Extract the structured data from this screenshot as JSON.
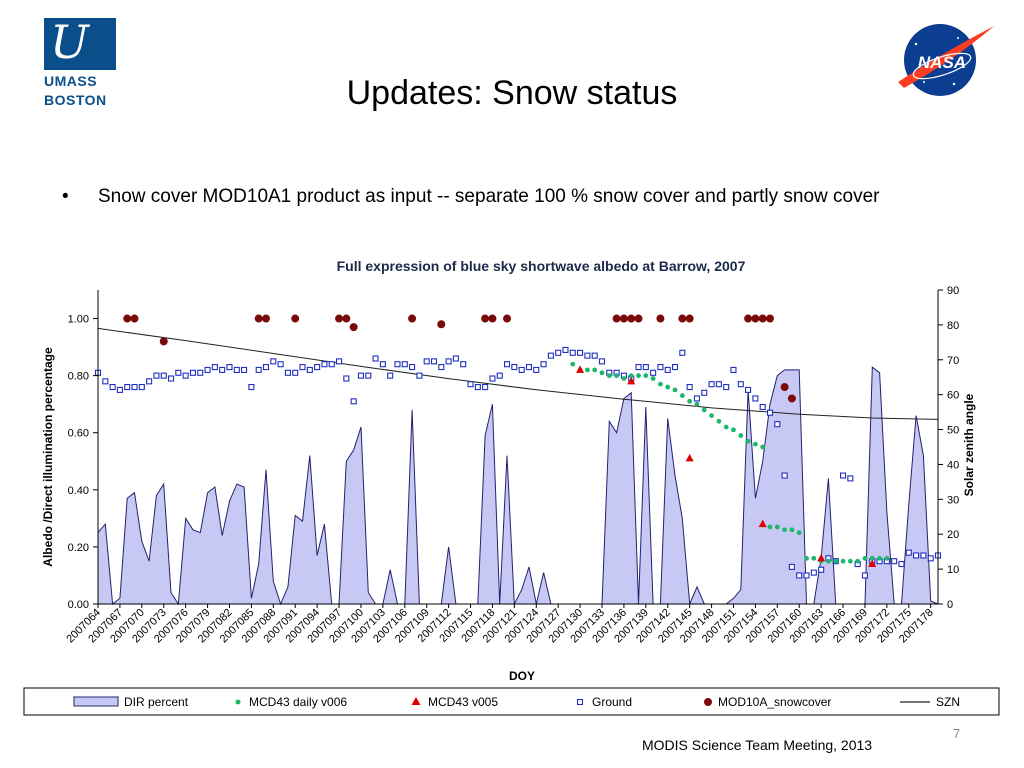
{
  "slide": {
    "title": "Updates: Snow status",
    "bullet": "Snow cover  MOD10A1 product as input  -- separate 100 % snow cover and partly snow cover",
    "footer": "MODIS Science Team Meeting, 2013",
    "page_number": "7",
    "logo_left": {
      "letter": "U",
      "line1": "UMASS",
      "line2": "BOSTON"
    },
    "logo_right": {
      "text": "NASA"
    }
  },
  "chart_data": {
    "type": "area",
    "title": "Full expression of blue sky shortwave albedo at Barrow, 2007",
    "xlabel": "DOY",
    "ylabel": "Albedo /Direct illumination percentage",
    "y2label": "Solar zenith angle",
    "xlim": [
      64,
      179
    ],
    "ylim": [
      0,
      1.1
    ],
    "y2lim": [
      0,
      90
    ],
    "x_tick_labels": [
      "2007064",
      "2007067",
      "2007070",
      "2007073",
      "2007076",
      "2007079",
      "2007082",
      "2007085",
      "2007088",
      "2007091",
      "2007094",
      "2007097",
      "2007100",
      "2007103",
      "2007106",
      "2007109",
      "2007112",
      "2007115",
      "2007118",
      "2007121",
      "2007124",
      "2007127",
      "2007130",
      "2007133",
      "2007136",
      "2007139",
      "2007142",
      "2007145",
      "2007148",
      "2007151",
      "2007154",
      "2007157",
      "2007160",
      "2007163",
      "2007166",
      "2007169",
      "2007172",
      "2007175",
      "2007178"
    ],
    "y_tick_labels": [
      "0.00",
      "0.20",
      "0.40",
      "0.60",
      "0.80",
      "1.00"
    ],
    "y2_tick_labels": [
      "0",
      "10",
      "20",
      "30",
      "40",
      "50",
      "60",
      "70",
      "80",
      "90"
    ],
    "grid": false,
    "legend_position": "bottom",
    "colors": {
      "dir": "#c8c8f4",
      "dir_line": "#23236e",
      "mcd43_daily": "#1cb86a",
      "mcd43_v005": "#e00000",
      "ground": "#1f2fbf",
      "snow": "#7a0a0a",
      "szn": "#222222",
      "title_color": "#1b2a4a"
    },
    "series": [
      {
        "name": "DIR percent",
        "x": [
          64,
          65,
          66,
          67,
          68,
          69,
          70,
          71,
          72,
          73,
          74,
          75,
          76,
          77,
          78,
          79,
          80,
          81,
          82,
          83,
          84,
          85,
          86,
          87,
          88,
          89,
          90,
          91,
          92,
          93,
          94,
          95,
          96,
          97,
          98,
          99,
          100,
          101,
          102,
          103,
          104,
          105,
          106,
          107,
          108,
          109,
          110,
          111,
          112,
          113,
          114,
          115,
          116,
          117,
          118,
          119,
          120,
          121,
          122,
          123,
          124,
          125,
          126,
          127,
          128,
          129,
          130,
          131,
          132,
          133,
          134,
          135,
          136,
          137,
          138,
          139,
          140,
          141,
          142,
          143,
          144,
          145,
          146,
          147,
          148,
          149,
          150,
          151,
          152,
          153,
          154,
          155,
          156,
          157,
          158,
          159,
          160,
          161,
          162,
          163,
          164,
          165,
          166,
          167,
          168,
          169,
          170,
          171,
          172,
          173,
          174,
          175,
          176,
          177,
          178,
          179
        ],
        "values": [
          0.25,
          0.28,
          0.0,
          0.02,
          0.37,
          0.39,
          0.22,
          0.15,
          0.38,
          0.42,
          0.04,
          0.0,
          0.3,
          0.26,
          0.25,
          0.39,
          0.41,
          0.24,
          0.36,
          0.42,
          0.41,
          0.02,
          0.14,
          0.47,
          0.08,
          0.0,
          0.06,
          0.31,
          0.29,
          0.52,
          0.17,
          0.28,
          0.0,
          0.0,
          0.5,
          0.54,
          0.62,
          0.04,
          0.0,
          0.0,
          0.12,
          0.0,
          0.0,
          0.68,
          0.0,
          0.0,
          0.0,
          0.0,
          0.2,
          0.0,
          0.0,
          0.0,
          0.0,
          0.59,
          0.7,
          0.0,
          0.52,
          0.0,
          0.05,
          0.13,
          0.0,
          0.11,
          0.0,
          0.0,
          0.0,
          0.0,
          0.0,
          0.0,
          0.0,
          0.0,
          0.64,
          0.6,
          0.72,
          0.74,
          0.0,
          0.69,
          0.0,
          0.0,
          0.65,
          0.45,
          0.3,
          0.0,
          0.06,
          0.0,
          0.0,
          0.0,
          0.0,
          0.02,
          0.05,
          0.75,
          0.37,
          0.5,
          0.7,
          0.8,
          0.82,
          0.82,
          0.82,
          0.0,
          0.0,
          0.16,
          0.44,
          0.0,
          0.0,
          0.0,
          0.0,
          0.0,
          0.83,
          0.81,
          0.32,
          0.0,
          0.0,
          0.35,
          0.66,
          0.52,
          0.01,
          0.0
        ]
      },
      {
        "name": "MCD43 daily v006",
        "x": [
          129,
          130,
          131,
          132,
          133,
          134,
          135,
          136,
          137,
          138,
          139,
          140,
          141,
          142,
          143,
          144,
          145,
          146,
          147,
          148,
          149,
          150,
          151,
          152,
          153,
          154,
          155,
          156,
          157,
          158,
          159,
          160,
          161,
          162,
          163,
          164,
          165,
          166,
          167,
          168,
          169,
          170,
          171,
          172
        ],
        "values": [
          0.84,
          0.82,
          0.82,
          0.82,
          0.81,
          0.8,
          0.8,
          0.79,
          0.8,
          0.8,
          0.8,
          0.79,
          0.77,
          0.76,
          0.75,
          0.73,
          0.71,
          0.7,
          0.68,
          0.66,
          0.64,
          0.62,
          0.61,
          0.59,
          0.57,
          0.56,
          0.55,
          0.27,
          0.27,
          0.26,
          0.26,
          0.25,
          0.16,
          0.16,
          0.15,
          0.15,
          0.15,
          0.15,
          0.15,
          0.15,
          0.16,
          0.16,
          0.16,
          0.16
        ]
      },
      {
        "name": "MCD43 v005",
        "x": [
          130,
          137,
          145,
          155,
          163,
          170
        ],
        "values": [
          0.82,
          0.78,
          0.51,
          0.28,
          0.16,
          0.14
        ]
      },
      {
        "name": "Ground",
        "x": [
          64,
          65,
          66,
          67,
          68,
          69,
          70,
          71,
          72,
          73,
          74,
          75,
          76,
          77,
          78,
          79,
          80,
          81,
          82,
          83,
          84,
          85,
          86,
          87,
          88,
          89,
          90,
          91,
          92,
          93,
          94,
          95,
          96,
          97,
          98,
          99,
          100,
          101,
          102,
          103,
          104,
          105,
          106,
          107,
          108,
          109,
          110,
          111,
          112,
          113,
          114,
          115,
          116,
          117,
          118,
          119,
          120,
          121,
          122,
          123,
          124,
          125,
          126,
          127,
          128,
          129,
          130,
          131,
          132,
          133,
          134,
          135,
          136,
          137,
          138,
          139,
          140,
          141,
          142,
          143,
          144,
          145,
          146,
          147,
          148,
          149,
          150,
          151,
          152,
          153,
          154,
          155,
          156,
          157,
          158,
          159,
          160,
          161,
          162,
          163,
          164,
          165,
          166,
          167,
          168,
          169,
          170,
          171,
          172,
          173,
          174,
          175,
          176,
          177,
          178,
          179
        ],
        "values": [
          0.81,
          0.78,
          0.76,
          0.75,
          0.76,
          0.76,
          0.76,
          0.78,
          0.8,
          0.8,
          0.79,
          0.81,
          0.8,
          0.81,
          0.81,
          0.82,
          0.83,
          0.82,
          0.83,
          0.82,
          0.82,
          0.76,
          0.82,
          0.83,
          0.85,
          0.84,
          0.81,
          0.81,
          0.83,
          0.82,
          0.83,
          0.84,
          0.84,
          0.85,
          0.79,
          0.71,
          0.8,
          0.8,
          0.86,
          0.84,
          0.8,
          0.84,
          0.84,
          0.83,
          0.8,
          0.85,
          0.85,
          0.83,
          0.85,
          0.86,
          0.84,
          0.77,
          0.76,
          0.76,
          0.79,
          0.8,
          0.84,
          0.83,
          0.82,
          0.83,
          0.82,
          0.84,
          0.87,
          0.88,
          0.89,
          0.88,
          0.88,
          0.87,
          0.87,
          0.85,
          0.81,
          0.81,
          0.8,
          0.79,
          0.83,
          0.83,
          0.81,
          0.83,
          0.82,
          0.83,
          0.88,
          0.76,
          0.72,
          0.74,
          0.77,
          0.77,
          0.76,
          0.82,
          0.77,
          0.75,
          0.72,
          0.69,
          0.67,
          0.63,
          0.45,
          0.13,
          0.1,
          0.1,
          0.11,
          0.12,
          0.16,
          0.15,
          0.45,
          0.44,
          0.14,
          0.1,
          0.15,
          0.15,
          0.15,
          0.15,
          0.14,
          0.18,
          0.17,
          0.17,
          0.16,
          0.17
        ]
      },
      {
        "name": "MOD10A_snowcover",
        "x": [
          68,
          69,
          73,
          86,
          87,
          91,
          97,
          98,
          99,
          107,
          111,
          117,
          118,
          120,
          135,
          136,
          137,
          138,
          141,
          144,
          145,
          153,
          154,
          155,
          156,
          158,
          159
        ],
        "values": [
          1.0,
          1.0,
          0.92,
          1.0,
          1.0,
          1.0,
          1.0,
          1.0,
          0.97,
          1.0,
          0.98,
          1.0,
          1.0,
          1.0,
          1.0,
          1.0,
          1.0,
          1.0,
          1.0,
          1.0,
          1.0,
          1.0,
          1.0,
          1.0,
          1.0,
          0.76,
          0.72
        ]
      },
      {
        "name": "SZN",
        "axis": "y2",
        "x": [
          64,
          76,
          88,
          100,
          112,
          124,
          136,
          148,
          160,
          170,
          179
        ],
        "values": [
          79,
          75.5,
          71.8,
          68.1,
          64.6,
          61.4,
          58.7,
          56.2,
          54.4,
          53.3,
          52.9
        ]
      }
    ]
  }
}
